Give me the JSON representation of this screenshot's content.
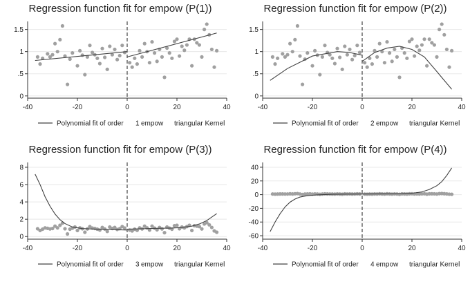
{
  "colors": {
    "scatter": "#a0a0a0",
    "line": "#404040",
    "cutoff": "#444444",
    "grid": "#e8e8e8"
  },
  "chart_data": [
    {
      "type": "scatter",
      "title": "Regression function fit for empow (P(1))",
      "xlim": [
        -40,
        40
      ],
      "ylim": [
        -0.05,
        1.65
      ],
      "xticks": [
        -40,
        -20,
        0,
        20,
        40
      ],
      "yticks": [
        0,
        0.5,
        1,
        1.5
      ],
      "ytick_labels": [
        "0",
        ".5",
        "1",
        "1.5"
      ],
      "cutoff": 0,
      "legend_text": [
        "Polynomial fit of order",
        "1",
        "empow",
        "triangular Kernel"
      ],
      "points": [
        [
          -36,
          0.88
        ],
        [
          -35,
          0.72
        ],
        [
          -34,
          0.85
        ],
        [
          -32,
          0.95
        ],
        [
          -31,
          0.88
        ],
        [
          -30,
          0.93
        ],
        [
          -29,
          1.18
        ],
        [
          -28,
          1.0
        ],
        [
          -27,
          1.27
        ],
        [
          -26,
          1.58
        ],
        [
          -25,
          0.9
        ],
        [
          -24,
          0.26
        ],
        [
          -23,
          0.83
        ],
        [
          -22,
          0.97
        ],
        [
          -20,
          0.68
        ],
        [
          -19,
          1.02
        ],
        [
          -18,
          0.92
        ],
        [
          -17,
          0.48
        ],
        [
          -16,
          0.88
        ],
        [
          -15,
          1.14
        ],
        [
          -14,
          0.98
        ],
        [
          -13,
          0.93
        ],
        [
          -12,
          0.85
        ],
        [
          -11,
          0.73
        ],
        [
          -10,
          1.07
        ],
        [
          -9,
          0.87
        ],
        [
          -8,
          0.6
        ],
        [
          -7,
          1.12
        ],
        [
          -6,
          0.93
        ],
        [
          -5,
          1.05
        ],
        [
          -4,
          0.82
        ],
        [
          -3,
          0.91
        ],
        [
          -2,
          1.14
        ],
        [
          -1,
          0.98
        ],
        [
          1,
          0.75
        ],
        [
          2,
          0.65
        ],
        [
          3,
          0.85
        ],
        [
          4,
          0.72
        ],
        [
          5,
          1.02
        ],
        [
          6,
          0.88
        ],
        [
          7,
          1.18
        ],
        [
          8,
          1.0
        ],
        [
          9,
          0.75
        ],
        [
          10,
          1.22
        ],
        [
          11,
          0.97
        ],
        [
          12,
          0.78
        ],
        [
          13,
          1.05
        ],
        [
          14,
          0.88
        ],
        [
          15,
          0.42
        ],
        [
          16,
          1.08
        ],
        [
          17,
          0.97
        ],
        [
          18,
          0.85
        ],
        [
          19,
          1.23
        ],
        [
          20,
          1.28
        ],
        [
          21,
          0.9
        ],
        [
          22,
          1.12
        ],
        [
          23,
          1.03
        ],
        [
          24,
          1.15
        ],
        [
          25,
          1.28
        ],
        [
          26,
          0.68
        ],
        [
          27,
          1.28
        ],
        [
          28,
          1.2
        ],
        [
          29,
          1.15
        ],
        [
          30,
          0.88
        ],
        [
          31,
          1.5
        ],
        [
          32,
          1.62
        ],
        [
          33,
          1.38
        ],
        [
          34,
          1.05
        ],
        [
          35,
          0.65
        ],
        [
          36,
          1.02
        ]
      ],
      "fit_left": {
        "x": [
          -37,
          0
        ],
        "y": [
          0.8,
          1.0
        ]
      },
      "fit_right": {
        "x": [
          0,
          36
        ],
        "y": [
          0.88,
          1.42
        ]
      }
    },
    {
      "type": "scatter",
      "title": "Regression function fit for empow (P(2))",
      "xlim": [
        -40,
        40
      ],
      "ylim": [
        -0.05,
        1.65
      ],
      "xticks": [
        -40,
        -20,
        0,
        20,
        40
      ],
      "yticks": [
        0,
        0.5,
        1,
        1.5
      ],
      "ytick_labels": [
        "0",
        ".5",
        "1",
        "1.5"
      ],
      "cutoff": 0,
      "legend_text": [
        "Polynomial fit of order",
        "2",
        "empow",
        "triangular Kernel"
      ],
      "points": [
        [
          -36,
          0.88
        ],
        [
          -35,
          0.72
        ],
        [
          -34,
          0.85
        ],
        [
          -32,
          0.95
        ],
        [
          -31,
          0.88
        ],
        [
          -30,
          0.93
        ],
        [
          -29,
          1.18
        ],
        [
          -28,
          1.0
        ],
        [
          -27,
          1.27
        ],
        [
          -26,
          1.58
        ],
        [
          -25,
          0.9
        ],
        [
          -24,
          0.26
        ],
        [
          -23,
          0.83
        ],
        [
          -22,
          0.97
        ],
        [
          -20,
          0.68
        ],
        [
          -19,
          1.02
        ],
        [
          -18,
          0.92
        ],
        [
          -17,
          0.48
        ],
        [
          -16,
          0.88
        ],
        [
          -15,
          1.14
        ],
        [
          -14,
          0.98
        ],
        [
          -13,
          0.93
        ],
        [
          -12,
          0.85
        ],
        [
          -11,
          0.73
        ],
        [
          -10,
          1.07
        ],
        [
          -9,
          0.87
        ],
        [
          -8,
          0.6
        ],
        [
          -7,
          1.12
        ],
        [
          -6,
          0.93
        ],
        [
          -5,
          1.05
        ],
        [
          -4,
          0.82
        ],
        [
          -3,
          0.91
        ],
        [
          -2,
          1.14
        ],
        [
          -1,
          0.98
        ],
        [
          1,
          0.75
        ],
        [
          2,
          0.65
        ],
        [
          3,
          0.85
        ],
        [
          4,
          0.72
        ],
        [
          5,
          1.02
        ],
        [
          6,
          0.88
        ],
        [
          7,
          1.18
        ],
        [
          8,
          1.0
        ],
        [
          9,
          0.75
        ],
        [
          10,
          1.22
        ],
        [
          11,
          0.97
        ],
        [
          12,
          0.78
        ],
        [
          13,
          1.05
        ],
        [
          14,
          0.88
        ],
        [
          15,
          0.42
        ],
        [
          16,
          1.08
        ],
        [
          17,
          0.97
        ],
        [
          18,
          0.85
        ],
        [
          19,
          1.23
        ],
        [
          20,
          1.28
        ],
        [
          21,
          0.9
        ],
        [
          22,
          1.12
        ],
        [
          23,
          1.03
        ],
        [
          24,
          1.15
        ],
        [
          25,
          1.28
        ],
        [
          26,
          0.68
        ],
        [
          27,
          1.28
        ],
        [
          28,
          1.2
        ],
        [
          29,
          1.15
        ],
        [
          30,
          0.88
        ],
        [
          31,
          1.5
        ],
        [
          32,
          1.62
        ],
        [
          33,
          1.38
        ],
        [
          34,
          1.05
        ],
        [
          35,
          0.65
        ],
        [
          36,
          1.02
        ]
      ],
      "fit_left": {
        "x": [
          -37,
          -30,
          -20,
          -10,
          -5,
          0
        ],
        "y": [
          0.35,
          0.62,
          0.9,
          1.0,
          0.98,
          0.92
        ]
      },
      "fit_right": {
        "x": [
          0,
          5,
          10,
          15,
          20,
          25,
          30,
          33,
          36
        ],
        "y": [
          0.78,
          0.98,
          1.08,
          1.12,
          1.05,
          0.88,
          0.55,
          0.35,
          0.15
        ]
      }
    },
    {
      "type": "scatter",
      "title": "Regression function fit for empow (P(3))",
      "xlim": [
        -40,
        40
      ],
      "ylim": [
        -0.3,
        8.4
      ],
      "xticks": [
        -40,
        -20,
        0,
        20,
        40
      ],
      "yticks": [
        0,
        2,
        4,
        6,
        8
      ],
      "ytick_labels": [
        "0",
        "2",
        "4",
        "6",
        "8"
      ],
      "cutoff": 0,
      "legend_text": [
        "Polynomial fit of order",
        "3",
        "empow",
        "triangular Kernel"
      ],
      "points": [
        [
          -36,
          0.9
        ],
        [
          -35,
          0.7
        ],
        [
          -34,
          0.85
        ],
        [
          -33,
          1.0
        ],
        [
          -32,
          0.95
        ],
        [
          -31,
          0.88
        ],
        [
          -30,
          0.93
        ],
        [
          -29,
          1.2
        ],
        [
          -28,
          1.0
        ],
        [
          -27,
          1.3
        ],
        [
          -26,
          1.55
        ],
        [
          -25,
          0.9
        ],
        [
          -24,
          0.3
        ],
        [
          -23,
          0.85
        ],
        [
          -22,
          0.97
        ],
        [
          -21,
          1.1
        ],
        [
          -20,
          0.7
        ],
        [
          -19,
          1.0
        ],
        [
          -18,
          0.9
        ],
        [
          -17,
          0.5
        ],
        [
          -16,
          0.88
        ],
        [
          -15,
          1.15
        ],
        [
          -14,
          0.98
        ],
        [
          -13,
          0.93
        ],
        [
          -12,
          0.85
        ],
        [
          -11,
          0.75
        ],
        [
          -10,
          1.05
        ],
        [
          -9,
          0.87
        ],
        [
          -8,
          0.6
        ],
        [
          -7,
          1.1
        ],
        [
          -6,
          0.93
        ],
        [
          -5,
          1.05
        ],
        [
          -4,
          0.82
        ],
        [
          -3,
          0.91
        ],
        [
          -2,
          1.15
        ],
        [
          -1,
          0.98
        ],
        [
          1,
          0.75
        ],
        [
          2,
          0.65
        ],
        [
          3,
          0.85
        ],
        [
          4,
          0.72
        ],
        [
          5,
          1.0
        ],
        [
          6,
          0.88
        ],
        [
          7,
          1.2
        ],
        [
          8,
          1.0
        ],
        [
          9,
          0.75
        ],
        [
          10,
          1.2
        ],
        [
          11,
          0.97
        ],
        [
          12,
          0.78
        ],
        [
          13,
          1.05
        ],
        [
          14,
          0.88
        ],
        [
          15,
          0.45
        ],
        [
          16,
          1.1
        ],
        [
          17,
          0.97
        ],
        [
          18,
          0.85
        ],
        [
          19,
          1.25
        ],
        [
          20,
          1.3
        ],
        [
          21,
          0.9
        ],
        [
          22,
          1.1
        ],
        [
          23,
          1.0
        ],
        [
          24,
          1.15
        ],
        [
          25,
          1.3
        ],
        [
          26,
          0.7
        ],
        [
          27,
          1.25
        ],
        [
          28,
          1.2
        ],
        [
          29,
          1.15
        ],
        [
          30,
          0.88
        ],
        [
          31,
          1.45
        ],
        [
          32,
          1.6
        ],
        [
          33,
          1.35
        ],
        [
          34,
          1.05
        ],
        [
          35,
          0.65
        ],
        [
          36,
          0.5
        ]
      ],
      "fit_left": {
        "x": [
          -37,
          -35,
          -33,
          -31,
          -29,
          -27,
          -25,
          -22,
          -18,
          -12,
          -6,
          0
        ],
        "y": [
          7.2,
          6.0,
          4.6,
          3.5,
          2.6,
          1.95,
          1.5,
          1.1,
          0.92,
          0.85,
          0.8,
          0.75
        ]
      },
      "fit_right": {
        "x": [
          0,
          6,
          12,
          18,
          22,
          26,
          29,
          32,
          34,
          36
        ],
        "y": [
          0.85,
          0.9,
          0.95,
          0.98,
          1.05,
          1.2,
          1.45,
          1.85,
          2.25,
          2.65
        ]
      }
    },
    {
      "type": "scatter",
      "title": "Regression function fit for empow (P(4))",
      "xlim": [
        -40,
        40
      ],
      "ylim": [
        -65,
        45
      ],
      "xticks": [
        -40,
        -20,
        0,
        20,
        40
      ],
      "yticks": [
        -60,
        -40,
        -20,
        0,
        20,
        40
      ],
      "ytick_labels": [
        "-60",
        "-40",
        "-20",
        "0",
        "20",
        "40"
      ],
      "cutoff": 0,
      "legend_text": [
        "Polynomial fit of order",
        "4",
        "empow",
        "triangular Kernel"
      ],
      "points": [
        [
          -36,
          0.9
        ],
        [
          -35,
          0.7
        ],
        [
          -34,
          0.85
        ],
        [
          -33,
          1.0
        ],
        [
          -32,
          0.95
        ],
        [
          -31,
          0.88
        ],
        [
          -30,
          0.93
        ],
        [
          -29,
          1.2
        ],
        [
          -28,
          1.0
        ],
        [
          -27,
          1.3
        ],
        [
          -26,
          1.55
        ],
        [
          -25,
          0.9
        ],
        [
          -24,
          0.3
        ],
        [
          -23,
          0.85
        ],
        [
          -22,
          0.97
        ],
        [
          -21,
          1.1
        ],
        [
          -20,
          0.7
        ],
        [
          -19,
          1.0
        ],
        [
          -18,
          0.9
        ],
        [
          -17,
          0.5
        ],
        [
          -16,
          0.88
        ],
        [
          -15,
          1.15
        ],
        [
          -14,
          0.98
        ],
        [
          -13,
          0.93
        ],
        [
          -12,
          0.85
        ],
        [
          -11,
          0.75
        ],
        [
          -10,
          1.05
        ],
        [
          -9,
          0.87
        ],
        [
          -8,
          0.6
        ],
        [
          -7,
          1.1
        ],
        [
          -6,
          0.93
        ],
        [
          -5,
          1.05
        ],
        [
          -4,
          0.82
        ],
        [
          -3,
          0.91
        ],
        [
          -2,
          1.15
        ],
        [
          -1,
          0.98
        ],
        [
          1,
          0.75
        ],
        [
          2,
          0.65
        ],
        [
          3,
          0.85
        ],
        [
          4,
          0.72
        ],
        [
          5,
          1.0
        ],
        [
          6,
          0.88
        ],
        [
          7,
          1.2
        ],
        [
          8,
          1.0
        ],
        [
          9,
          0.75
        ],
        [
          10,
          1.2
        ],
        [
          11,
          0.97
        ],
        [
          12,
          0.78
        ],
        [
          13,
          1.05
        ],
        [
          14,
          0.88
        ],
        [
          15,
          0.45
        ],
        [
          16,
          1.1
        ],
        [
          17,
          0.97
        ],
        [
          18,
          0.85
        ],
        [
          19,
          1.25
        ],
        [
          20,
          1.3
        ],
        [
          21,
          0.9
        ],
        [
          22,
          1.1
        ],
        [
          23,
          1.0
        ],
        [
          24,
          1.15
        ],
        [
          25,
          1.3
        ],
        [
          26,
          0.7
        ],
        [
          27,
          1.25
        ],
        [
          28,
          1.2
        ],
        [
          29,
          1.15
        ],
        [
          30,
          0.88
        ],
        [
          31,
          1.45
        ],
        [
          32,
          1.6
        ],
        [
          33,
          1.35
        ],
        [
          34,
          1.05
        ],
        [
          35,
          0.65
        ],
        [
          36,
          0.5
        ]
      ],
      "fit_left": {
        "x": [
          -37,
          -35,
          -33,
          -31,
          -29,
          -27,
          -25,
          -22,
          -18,
          -12,
          -6,
          0
        ],
        "y": [
          -54,
          -40,
          -28,
          -18,
          -11,
          -6.5,
          -3.5,
          -1.5,
          -0.3,
          0.5,
          0.8,
          0.9
        ]
      },
      "fit_right": {
        "x": [
          0,
          8,
          16,
          20,
          24,
          27,
          30,
          32,
          34,
          36
        ],
        "y": [
          0.9,
          1.0,
          1.2,
          2.0,
          4.0,
          7.5,
          13,
          19,
          28,
          39
        ]
      }
    }
  ]
}
